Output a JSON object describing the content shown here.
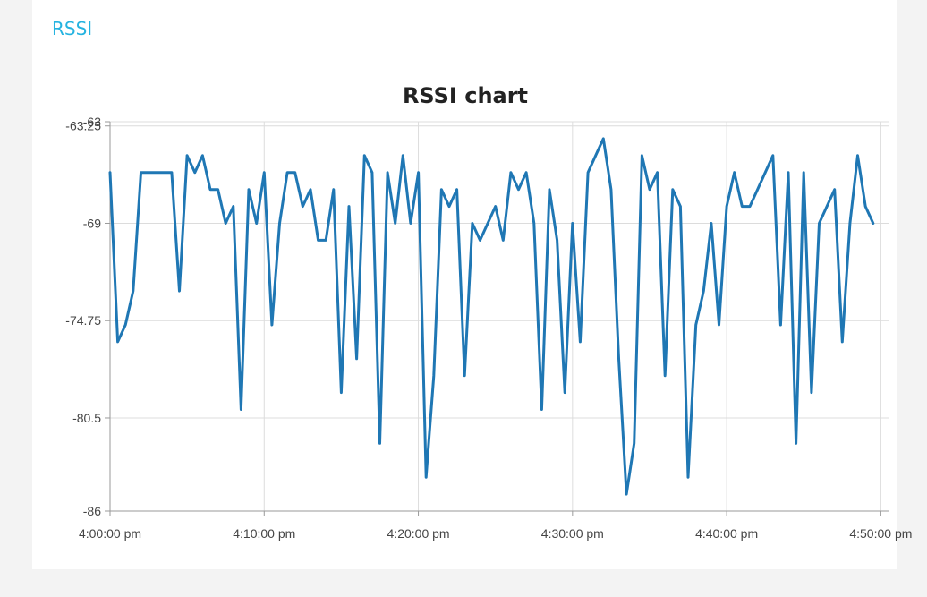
{
  "panel": {
    "title": "RSSI"
  },
  "colors": {
    "panel_title": "#25b3e0",
    "series": "#1f77b4"
  },
  "chart_data": {
    "type": "line",
    "title": "RSSI chart",
    "xlabel": "",
    "ylabel": "",
    "x_unit": "minutes after 4:00:00 pm",
    "xlim": [
      0,
      50.5
    ],
    "ylim": [
      -86,
      -63
    ],
    "y_ticks": [
      {
        "value": -63,
        "label": "-63"
      },
      {
        "value": -63.25,
        "label": "-63.25"
      },
      {
        "value": -69,
        "label": "-69"
      },
      {
        "value": -74.75,
        "label": "-74.75"
      },
      {
        "value": -80.5,
        "label": "-80.5"
      },
      {
        "value": -86,
        "label": "-86"
      }
    ],
    "x_ticks": [
      {
        "value": 0,
        "label": "4:00:00 pm"
      },
      {
        "value": 10,
        "label": "4:10:00 pm"
      },
      {
        "value": 20,
        "label": "4:20:00 pm"
      },
      {
        "value": 30,
        "label": "4:30:00 pm"
      },
      {
        "value": 40,
        "label": "4:40:00 pm"
      },
      {
        "value": 50,
        "label": "4:50:00 pm"
      }
    ],
    "grid": true,
    "legend": "none",
    "series": [
      {
        "points": [
          [
            0.0,
            -66
          ],
          [
            0.5,
            -76
          ],
          [
            1.0,
            -75
          ],
          [
            1.5,
            -73
          ],
          [
            2.0,
            -66
          ],
          [
            4.0,
            -66
          ],
          [
            4.5,
            -73
          ],
          [
            5.0,
            -65
          ],
          [
            5.5,
            -66
          ],
          [
            6.0,
            -65
          ],
          [
            6.5,
            -67
          ],
          [
            7.0,
            -67
          ],
          [
            7.5,
            -69
          ],
          [
            8.0,
            -68
          ],
          [
            8.5,
            -80
          ],
          [
            9.0,
            -67
          ],
          [
            9.5,
            -69
          ],
          [
            10.0,
            -66
          ],
          [
            10.5,
            -75
          ],
          [
            11.0,
            -69
          ],
          [
            11.5,
            -66
          ],
          [
            12.0,
            -66
          ],
          [
            12.5,
            -68
          ],
          [
            13.0,
            -67
          ],
          [
            13.5,
            -70
          ],
          [
            14.0,
            -70
          ],
          [
            14.5,
            -67
          ],
          [
            15.0,
            -79
          ],
          [
            15.5,
            -68
          ],
          [
            16.0,
            -77
          ],
          [
            16.5,
            -65
          ],
          [
            17.0,
            -66
          ],
          [
            17.5,
            -82
          ],
          [
            18.0,
            -66
          ],
          [
            18.5,
            -69
          ],
          [
            19.0,
            -65
          ],
          [
            19.5,
            -69
          ],
          [
            20.0,
            -66
          ],
          [
            20.5,
            -84
          ],
          [
            21.0,
            -78
          ],
          [
            21.5,
            -67
          ],
          [
            22.0,
            -68
          ],
          [
            22.5,
            -67
          ],
          [
            23.0,
            -78
          ],
          [
            23.5,
            -69
          ],
          [
            24.0,
            -70
          ],
          [
            24.5,
            -69
          ],
          [
            25.0,
            -68
          ],
          [
            25.5,
            -70
          ],
          [
            26.0,
            -66
          ],
          [
            26.5,
            -67
          ],
          [
            27.0,
            -66
          ],
          [
            27.5,
            -69
          ],
          [
            28.0,
            -80
          ],
          [
            28.5,
            -67
          ],
          [
            29.0,
            -70
          ],
          [
            29.5,
            -79
          ],
          [
            30.0,
            -69
          ],
          [
            30.5,
            -76
          ],
          [
            31.0,
            -66
          ],
          [
            31.5,
            -65
          ],
          [
            32.0,
            -64
          ],
          [
            32.5,
            -67
          ],
          [
            33.0,
            -77
          ],
          [
            33.5,
            -85
          ],
          [
            34.0,
            -82
          ],
          [
            34.5,
            -65
          ],
          [
            35.0,
            -67
          ],
          [
            35.5,
            -66
          ],
          [
            36.0,
            -78
          ],
          [
            36.5,
            -67
          ],
          [
            37.0,
            -68
          ],
          [
            37.5,
            -84
          ],
          [
            38.0,
            -75
          ],
          [
            38.5,
            -73
          ],
          [
            39.0,
            -69
          ],
          [
            39.5,
            -75
          ],
          [
            40.0,
            -68
          ],
          [
            40.5,
            -66
          ],
          [
            41.0,
            -68
          ],
          [
            41.5,
            -68
          ],
          [
            42.0,
            -67
          ],
          [
            42.5,
            -66
          ],
          [
            43.0,
            -65
          ],
          [
            43.5,
            -75
          ],
          [
            44.0,
            -66
          ],
          [
            44.5,
            -82
          ],
          [
            45.0,
            -66
          ],
          [
            45.5,
            -79
          ],
          [
            46.0,
            -69
          ],
          [
            46.5,
            -68
          ],
          [
            47.0,
            -67
          ],
          [
            47.5,
            -76
          ],
          [
            48.0,
            -69
          ],
          [
            48.5,
            -65
          ],
          [
            49.0,
            -68
          ],
          [
            49.5,
            -69
          ]
        ]
      }
    ]
  }
}
